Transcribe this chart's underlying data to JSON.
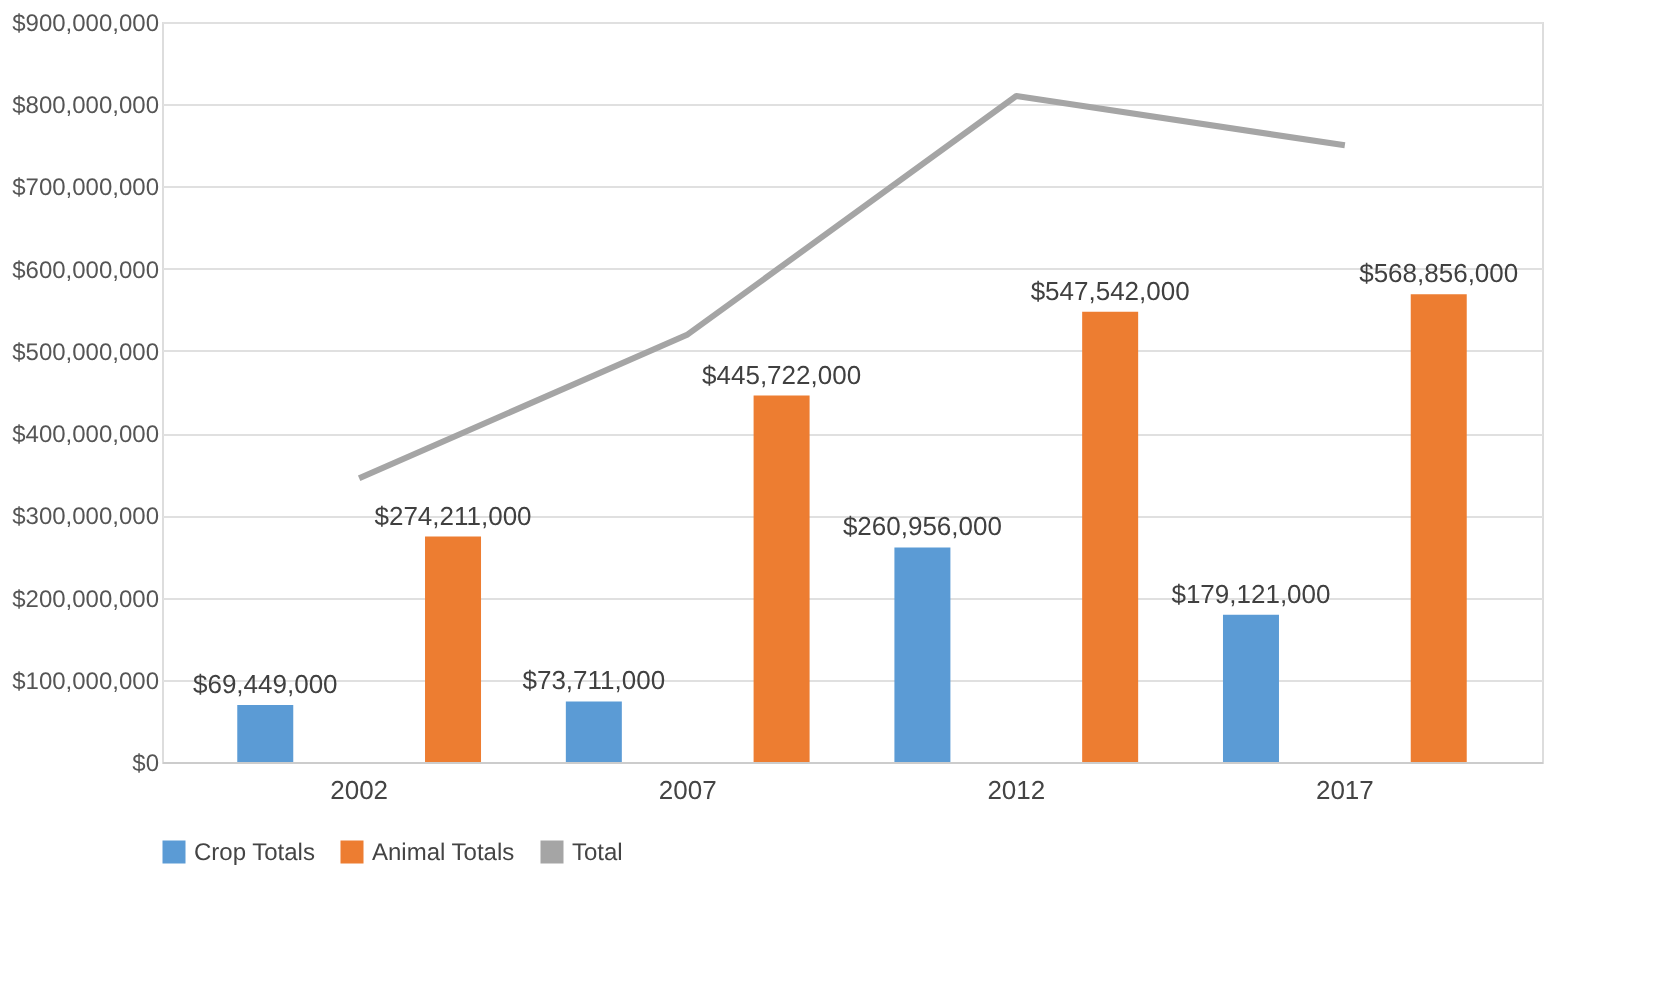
{
  "chart_data": {
    "type": "bar",
    "categories": [
      "2002",
      "2007",
      "2012",
      "2017"
    ],
    "series": [
      {
        "name": "Crop Totals",
        "color": "#5b9bd5",
        "values": [
          69449000,
          73711000,
          260956000,
          179121000
        ],
        "value_labels": [
          "$69,449,000",
          "$73,711,000",
          "$260,956,000",
          "$179,121,000"
        ]
      },
      {
        "name": "Animal Totals",
        "color": "#ed7d31",
        "values": [
          274211000,
          445722000,
          547542000,
          568856000
        ],
        "value_labels": [
          "$274,211,000",
          "$445,722,000",
          "$547,542,000",
          "$568,856,000"
        ]
      },
      {
        "name": "Total",
        "color": "#a5a5a5",
        "type": "line",
        "marker": "none",
        "line_style": "solid",
        "values": [
          345000000,
          520000000,
          810000000,
          750000000
        ]
      }
    ],
    "ylim": [
      0,
      900000000
    ],
    "yticks": [
      {
        "value": 0,
        "label": "$0"
      },
      {
        "value": 100000000,
        "label": "$100,000,000"
      },
      {
        "value": 200000000,
        "label": "$200,000,000"
      },
      {
        "value": 300000000,
        "label": "$300,000,000"
      },
      {
        "value": 400000000,
        "label": "$400,000,000"
      },
      {
        "value": 500000000,
        "label": "$500,000,000"
      },
      {
        "value": 600000000,
        "label": "$600,000,000"
      },
      {
        "value": 700000000,
        "label": "$700,000,000"
      },
      {
        "value": 800000000,
        "label": "$800,000,000"
      },
      {
        "value": 900000000,
        "label": "$900,000,000"
      }
    ],
    "grid": "y",
    "legend": "bottom"
  }
}
